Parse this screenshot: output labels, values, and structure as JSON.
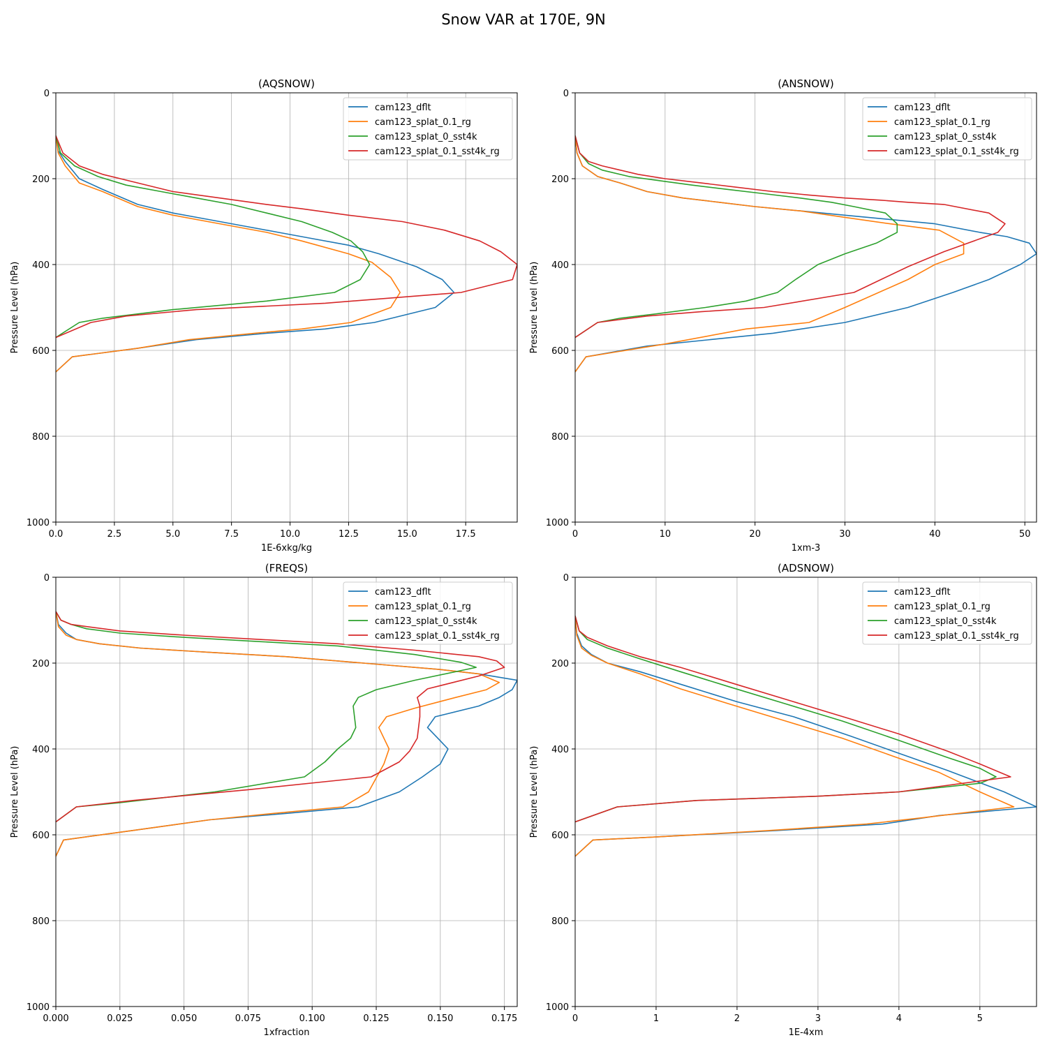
{
  "figure": {
    "title": "Snow VAR at 170E, 9N"
  },
  "colors": {
    "cam123_dflt": "#1f77b4",
    "cam123_splat_0.1_rg": "#ff7f0e",
    "cam123_splat_0_sst4k": "#2ca02c",
    "cam123_splat_0.1_sst4k_rg": "#d62728"
  },
  "chart_data": [
    {
      "type": "line",
      "title": "(AQSNOW)",
      "xlabel": "1E-6xkg/kg",
      "ylabel": "Pressure Level (hPa)",
      "xlim": [
        0,
        19.7
      ],
      "ylim": [
        1000,
        0
      ],
      "xticks": [
        "0.0",
        "2.5",
        "5.0",
        "7.5",
        "10.0",
        "12.5",
        "15.0",
        "17.5"
      ],
      "xtick_values": [
        0,
        2.5,
        5,
        7.5,
        10,
        12.5,
        15,
        17.5
      ],
      "yticks": [
        "0",
        "200",
        "400",
        "600",
        "800",
        "1000"
      ],
      "ytick_values": [
        0,
        200,
        400,
        600,
        800,
        1000
      ],
      "grid": true,
      "legend": "top-right",
      "series": [
        {
          "name": "cam123_dflt",
          "x": [
            0,
            0.1,
            0.4,
            1,
            2,
            3.5,
            5,
            6.5,
            8,
            9.5,
            11,
            12.5,
            13.8,
            15.4,
            16.5,
            17,
            16.2,
            13.6,
            11.5,
            9,
            6,
            3.5,
            0.7,
            0
          ],
          "y": [
            100,
            135,
            160,
            200,
            225,
            260,
            280,
            295,
            310,
            325,
            340,
            355,
            375,
            405,
            435,
            465,
            500,
            535,
            550,
            560,
            575,
            595,
            615,
            650
          ]
        },
        {
          "name": "cam123_splat_0.1_rg",
          "x": [
            0,
            0.1,
            0.4,
            1,
            2,
            3.5,
            5,
            7,
            9,
            10.5,
            12.5,
            13.5,
            14.3,
            14.7,
            14.3,
            12.6,
            10.5,
            8.5,
            5.7,
            3.5,
            0.7,
            0
          ],
          "y": [
            100,
            140,
            170,
            210,
            230,
            265,
            285,
            305,
            325,
            345,
            375,
            395,
            430,
            465,
            500,
            535,
            550,
            560,
            575,
            595,
            615,
            650
          ]
        },
        {
          "name": "cam123_splat_0_sst4k",
          "x": [
            0,
            0.2,
            0.8,
            1.8,
            3,
            4.5,
            6,
            7.5,
            9,
            10.5,
            11.8,
            12.6,
            13.1,
            13.4,
            13,
            11.9,
            9,
            5,
            2,
            1,
            0
          ],
          "y": [
            100,
            140,
            170,
            195,
            215,
            230,
            245,
            260,
            280,
            300,
            325,
            345,
            370,
            400,
            435,
            465,
            485,
            505,
            525,
            535,
            570
          ]
        },
        {
          "name": "cam123_splat_0.1_sst4k_rg",
          "x": [
            0,
            0.3,
            1,
            2,
            3.5,
            5,
            7,
            9,
            10.5,
            12.5,
            14.8,
            16.6,
            18.1,
            19,
            19.7,
            19.5,
            17.3,
            11.5,
            6,
            3,
            1.5,
            0
          ],
          "y": [
            100,
            140,
            170,
            190,
            210,
            230,
            245,
            260,
            270,
            285,
            300,
            320,
            345,
            370,
            400,
            435,
            465,
            490,
            505,
            520,
            535,
            570
          ]
        }
      ]
    },
    {
      "type": "line",
      "title": "(ANSNOW)",
      "xlabel": "1xm-3",
      "ylabel": "Pressure Level (hPa)",
      "xlim": [
        0,
        51.3
      ],
      "ylim": [
        1000,
        0
      ],
      "xticks": [
        "0",
        "10",
        "20",
        "30",
        "40",
        "50"
      ],
      "xtick_values": [
        0,
        10,
        20,
        30,
        40,
        50
      ],
      "yticks": [
        "0",
        "200",
        "400",
        "600",
        "800",
        "1000"
      ],
      "ytick_values": [
        0,
        200,
        400,
        600,
        800,
        1000
      ],
      "grid": true,
      "legend": "top-right",
      "series": [
        {
          "name": "cam123_dflt",
          "x": [
            0,
            0.2,
            0.8,
            2.5,
            5,
            8,
            12,
            16,
            20,
            25,
            30,
            35,
            40,
            45,
            48,
            50.5,
            51.3,
            49.5,
            46,
            42,
            37,
            30,
            22,
            15,
            8,
            1.2,
            0
          ],
          "y": [
            100,
            140,
            170,
            195,
            210,
            230,
            245,
            255,
            265,
            275,
            285,
            295,
            305,
            325,
            335,
            350,
            375,
            400,
            435,
            465,
            500,
            535,
            560,
            575,
            590,
            615,
            650
          ]
        },
        {
          "name": "cam123_splat_0.1_rg",
          "x": [
            0,
            0.2,
            0.8,
            2.5,
            5,
            8,
            12,
            16,
            20,
            25,
            30,
            35,
            40.5,
            43.2,
            43.2,
            40,
            37,
            30,
            26,
            19,
            10,
            1.2,
            0
          ],
          "y": [
            100,
            140,
            170,
            195,
            210,
            230,
            245,
            255,
            265,
            275,
            290,
            305,
            320,
            350,
            375,
            400,
            435,
            500,
            535,
            550,
            585,
            615,
            650
          ]
        },
        {
          "name": "cam123_splat_0_sst4k",
          "x": [
            0,
            0.5,
            1.5,
            3,
            6,
            9.5,
            13,
            17,
            21,
            25,
            28.5,
            31,
            34.5,
            35.8,
            35.8,
            33.5,
            30,
            27,
            24.5,
            22.5,
            19,
            14.5,
            9,
            5,
            2.5,
            0
          ],
          "y": [
            100,
            140,
            165,
            180,
            195,
            205,
            215,
            225,
            235,
            245,
            255,
            265,
            280,
            305,
            325,
            350,
            375,
            400,
            435,
            465,
            485,
            500,
            515,
            525,
            535,
            570
          ]
        },
        {
          "name": "cam123_splat_0.1_sst4k_rg",
          "x": [
            0,
            0.5,
            1.5,
            3,
            5,
            7,
            10,
            14,
            18,
            22,
            26,
            30,
            34,
            37,
            41,
            46,
            47.8,
            47,
            41,
            37,
            34,
            31,
            21,
            14,
            8,
            2.5,
            0
          ],
          "y": [
            100,
            140,
            160,
            170,
            180,
            190,
            200,
            210,
            220,
            230,
            238,
            245,
            250,
            255,
            260,
            280,
            305,
            325,
            370,
            405,
            435,
            465,
            500,
            510,
            520,
            535,
            570
          ]
        }
      ]
    },
    {
      "type": "line",
      "title": "(FREQS)",
      "xlabel": "1xfraction",
      "ylabel": "Pressure Level (hPa)",
      "xlim": [
        0,
        0.18
      ],
      "ylim": [
        1000,
        0
      ],
      "xticks": [
        "0.000",
        "0.025",
        "0.050",
        "0.075",
        "0.100",
        "0.125",
        "0.150",
        "0.175"
      ],
      "xtick_values": [
        0,
        0.025,
        0.05,
        0.075,
        0.1,
        0.125,
        0.15,
        0.175
      ],
      "yticks": [
        "0",
        "200",
        "400",
        "600",
        "800",
        "1000"
      ],
      "ytick_values": [
        0,
        200,
        400,
        600,
        800,
        1000
      ],
      "grid": true,
      "legend": "top-right",
      "series": [
        {
          "name": "cam123_dflt",
          "x": [
            0,
            0.001,
            0.004,
            0.008,
            0.017,
            0.033,
            0.06,
            0.09,
            0.12,
            0.15,
            0.165,
            0.18,
            0.178,
            0.173,
            0.165,
            0.148,
            0.145,
            0.149,
            0.153,
            0.15,
            0.143,
            0.134,
            0.118,
            0.09,
            0.06,
            0.03,
            0.003,
            0
          ],
          "y": [
            80,
            110,
            130,
            145,
            155,
            165,
            175,
            185,
            200,
            215,
            225,
            240,
            262,
            280,
            300,
            325,
            350,
            375,
            400,
            435,
            465,
            500,
            535,
            550,
            565,
            590,
            612,
            650
          ]
        },
        {
          "name": "cam123_splat_0.1_rg",
          "x": [
            0,
            0.001,
            0.004,
            0.008,
            0.017,
            0.033,
            0.06,
            0.09,
            0.12,
            0.15,
            0.165,
            0.173,
            0.168,
            0.156,
            0.14,
            0.129,
            0.126,
            0.13,
            0.128,
            0.122,
            0.112,
            0.085,
            0.06,
            0.03,
            0.003,
            0
          ],
          "y": [
            80,
            115,
            135,
            145,
            155,
            165,
            175,
            185,
            200,
            215,
            225,
            245,
            262,
            280,
            305,
            325,
            350,
            400,
            435,
            500,
            535,
            550,
            565,
            590,
            612,
            650
          ]
        },
        {
          "name": "cam123_splat_0_sst4k",
          "x": [
            0,
            0.002,
            0.006,
            0.012,
            0.025,
            0.05,
            0.08,
            0.11,
            0.14,
            0.158,
            0.164,
            0.14,
            0.125,
            0.118,
            0.116,
            0.117,
            0.115,
            0.11,
            0.105,
            0.097,
            0.062,
            0.025,
            0.008,
            0
          ],
          "y": [
            80,
            100,
            110,
            120,
            130,
            140,
            150,
            160,
            180,
            198,
            210,
            240,
            262,
            280,
            300,
            350,
            375,
            400,
            430,
            465,
            500,
            525,
            535,
            570
          ]
        },
        {
          "name": "cam123_splat_0.1_sst4k_rg",
          "x": [
            0,
            0.002,
            0.006,
            0.012,
            0.025,
            0.05,
            0.08,
            0.11,
            0.14,
            0.165,
            0.172,
            0.175,
            0.165,
            0.155,
            0.145,
            0.141,
            0.142,
            0.142,
            0.141,
            0.138,
            0.134,
            0.123,
            0.075,
            0.03,
            0.008,
            0
          ],
          "y": [
            80,
            100,
            110,
            115,
            125,
            135,
            145,
            155,
            170,
            185,
            195,
            210,
            230,
            245,
            260,
            280,
            300,
            325,
            375,
            405,
            430,
            465,
            495,
            520,
            535,
            570
          ]
        }
      ]
    },
    {
      "type": "line",
      "title": "(ADSNOW)",
      "xlabel": "1E-4xm",
      "ylabel": "Pressure Level (hPa)",
      "xlim": [
        0,
        5.7
      ],
      "ylim": [
        1000,
        0
      ],
      "xticks": [
        "0",
        "1",
        "2",
        "3",
        "4",
        "5"
      ],
      "xtick_values": [
        0,
        1,
        2,
        3,
        4,
        5
      ],
      "yticks": [
        "0",
        "200",
        "400",
        "600",
        "800",
        "1000"
      ],
      "ytick_values": [
        0,
        200,
        400,
        600,
        800,
        1000
      ],
      "grid": true,
      "legend": "top-right",
      "series": [
        {
          "name": "cam123_dflt",
          "x": [
            0,
            0.02,
            0.08,
            0.2,
            0.4,
            0.8,
            1.4,
            2,
            2.7,
            3.4,
            4,
            4.6,
            5.3,
            5.7,
            4.5,
            3.8,
            2.5,
            1,
            0.22,
            0
          ],
          "y": [
            90,
            130,
            160,
            180,
            200,
            220,
            255,
            290,
            325,
            370,
            410,
            450,
            500,
            535,
            555,
            575,
            590,
            605,
            612,
            650
          ]
        },
        {
          "name": "cam123_splat_0.1_rg",
          "x": [
            0,
            0.02,
            0.08,
            0.2,
            0.4,
            0.8,
            1.3,
            1.9,
            2.6,
            3.3,
            3.9,
            4.5,
            5,
            5.42,
            4.3,
            3.6,
            2.4,
            1,
            0.22,
            0
          ],
          "y": [
            90,
            135,
            165,
            182,
            200,
            225,
            260,
            295,
            335,
            375,
            415,
            455,
            500,
            535,
            560,
            575,
            590,
            605,
            612,
            650
          ]
        },
        {
          "name": "cam123_splat_0_sst4k",
          "x": [
            0,
            0.05,
            0.15,
            0.4,
            0.8,
            1.3,
            1.9,
            2.6,
            3.3,
            4,
            4.6,
            5,
            5.2,
            5,
            4,
            3,
            1.5,
            0.52,
            0
          ],
          "y": [
            90,
            125,
            145,
            165,
            190,
            220,
            255,
            295,
            335,
            380,
            420,
            445,
            465,
            480,
            500,
            510,
            520,
            535,
            570
          ]
        },
        {
          "name": "cam123_splat_0.1_sst4k_rg",
          "x": [
            0,
            0.05,
            0.15,
            0.4,
            0.8,
            1.3,
            2,
            2.7,
            3.4,
            4,
            4.6,
            5,
            5.38,
            4,
            3,
            1.5,
            0.52,
            0
          ],
          "y": [
            90,
            125,
            140,
            160,
            185,
            210,
            250,
            290,
            330,
            365,
            405,
            435,
            465,
            500,
            510,
            520,
            535,
            570
          ]
        }
      ]
    }
  ]
}
